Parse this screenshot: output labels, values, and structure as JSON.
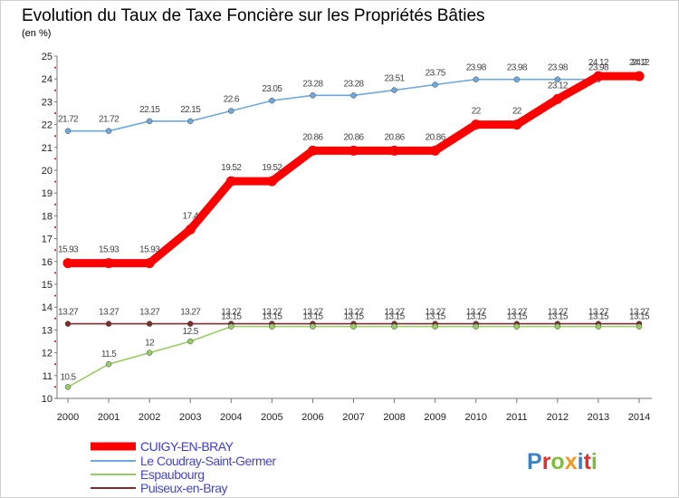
{
  "chart_data": {
    "type": "line",
    "title": "Evolution du Taux de Taxe Foncière sur les Propriétés Bâties",
    "subtitle": "(en %)",
    "xlabel": "",
    "ylabel": "",
    "x": [
      "2000",
      "2001",
      "2002",
      "2003",
      "2004",
      "2005",
      "2006",
      "2007",
      "2008",
      "2009",
      "2010",
      "2011",
      "2012",
      "2013",
      "2014"
    ],
    "yticks": [
      "10",
      "11",
      "12",
      "13",
      "14",
      "15",
      "16",
      "17",
      "18",
      "19",
      "20",
      "21",
      "22",
      "23",
      "24",
      "25"
    ],
    "ylim": [
      10,
      25
    ],
    "grid": false,
    "legend_position": "bottom-left",
    "series": [
      {
        "name": "CUIGY-EN-BRAY",
        "color": "#ff0000",
        "values": [
          15.93,
          15.93,
          15.93,
          17.4,
          19.52,
          19.52,
          20.86,
          20.86,
          20.86,
          20.86,
          22,
          22,
          23.12,
          24.12,
          24.12
        ],
        "labels": [
          "15.93",
          "15.93",
          "15.93",
          "17.4",
          "19.52",
          "19.52",
          "20.86",
          "20.86",
          "20.86",
          "20.86",
          "22",
          "22",
          "23.12",
          "24.12",
          "24.12"
        ]
      },
      {
        "name": "Le Coudray-Saint-Germer",
        "color": "#6fa8dc",
        "values": [
          21.72,
          21.72,
          22.15,
          22.15,
          22.6,
          23.05,
          23.28,
          23.28,
          23.51,
          23.75,
          23.98,
          23.98,
          23.98,
          23.98,
          24.2
        ],
        "labels": [
          "21.72",
          "21.72",
          "22.15",
          "22.15",
          "22.6",
          "23.05",
          "23.28",
          "23.28",
          "23.51",
          "23.75",
          "23.98",
          "23.98",
          "23.98",
          "23.98",
          "24.2"
        ]
      },
      {
        "name": "Espaubourg",
        "color": "#99cc66",
        "values": [
          10.5,
          11.5,
          12,
          12.5,
          13.15,
          13.15,
          13.15,
          13.15,
          13.15,
          13.15,
          13.15,
          13.15,
          13.15,
          13.15,
          13.15
        ],
        "labels": [
          "10.5",
          "11.5",
          "12",
          "12.5",
          "13.15",
          "13.15",
          "13.15",
          "13.15",
          "13.15",
          "13.15",
          "13.15",
          "13.15",
          "13.15",
          "13.15",
          "13.15"
        ]
      },
      {
        "name": "Puiseux-en-Bray",
        "color": "#7a2e2e",
        "values": [
          13.27,
          13.27,
          13.27,
          13.27,
          13.27,
          13.27,
          13.27,
          13.27,
          13.27,
          13.27,
          13.27,
          13.27,
          13.27,
          13.27,
          13.27
        ],
        "labels": [
          "13.27",
          "13.27",
          "13.27",
          "13.27",
          "13.27",
          "13.27",
          "13.27",
          "13.27",
          "13.27",
          "13.27",
          "13.27",
          "13.27",
          "13.27",
          "13.27",
          "13.27"
        ]
      }
    ]
  },
  "logo": {
    "text": "Proxiti",
    "letters": [
      "P",
      "r",
      "o",
      "x",
      "i",
      "t",
      "i"
    ],
    "colors": [
      "#3b7fc4",
      "#e03030",
      "#7cbf3a",
      "#f29a1f",
      "#3b7fc4",
      "#e03030",
      "#7cbf3a"
    ]
  },
  "colors": {
    "title": "#3a5da8",
    "axis": "#777777",
    "tick_marker": "#cc0000",
    "frame": "#cfcfcf"
  }
}
